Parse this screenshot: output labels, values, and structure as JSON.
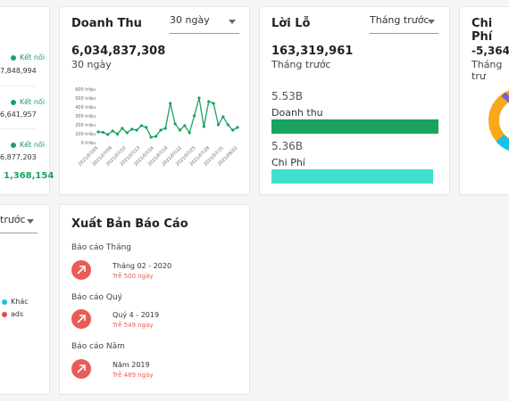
{
  "partner_card": {
    "status_label": "Kết nối",
    "items": [
      {
        "status": "Kết nối",
        "value": "7,848,994"
      },
      {
        "status": "Kết nối",
        "value": "6,641,957"
      },
      {
        "status": "Kết nối",
        "value": "6,877,203"
      }
    ],
    "total": "1,368,154"
  },
  "revenue_card": {
    "title": "Doanh Thu",
    "period_select": "30 ngày",
    "total": "6,034,837,308",
    "subtitle": "30 ngày"
  },
  "profit_card": {
    "title": "Lời Lỗ",
    "period_select": "Tháng trước",
    "total": "163,319,961",
    "subtitle": "Tháng trước",
    "revenue_value": "5.53B",
    "revenue_label": "Doanh thu",
    "revenue_fraction": 1.0,
    "expense_value": "5.36B",
    "expense_label": "Chi Phí",
    "expense_fraction": 0.97,
    "revenue_color": "#1aa260",
    "expense_color": "#40e0d0"
  },
  "expense_card": {
    "title": "Chi Phí",
    "total": "-5,364,",
    "subtitle": "Tháng trư"
  },
  "source_card": {
    "period_select": "trước",
    "legend": [
      {
        "label": "Khác",
        "color": "#17c1e8"
      },
      {
        "label": "ads",
        "color": "#e8493f"
      }
    ]
  },
  "report_card": {
    "title": "Xuất Bản Báo Cáo",
    "reports": [
      {
        "label": "Báo cáo Tháng",
        "period": "Tháng 02 - 2020",
        "late": "Trễ 500 ngày"
      },
      {
        "label": "Báo cáo Quý",
        "period": "Quý 4 - 2019",
        "late": "Trễ 549 ngày"
      },
      {
        "label": "Báo cáo Năm",
        "period": "Năm 2019",
        "late": "Trễ 489 ngày"
      }
    ]
  },
  "chart_data": {
    "type": "line",
    "title": "",
    "xlabel": "",
    "ylabel": "",
    "y_tick_labels": [
      "0 triệu",
      "100 triệu",
      "200 triệu",
      "300 triệu",
      "400 triệu",
      "500 triệu",
      "600 triệu"
    ],
    "ylim": [
      0,
      600
    ],
    "x_tick_labels": [
      "2021/07/05",
      "2021/07/08",
      "2021/07/10",
      "2021/07/13",
      "2021/07/16",
      "2021/07/19",
      "2021/07/22",
      "2021/07/25",
      "2021/07/28",
      "2021/07/31",
      "2021/08/02"
    ],
    "x": [
      "07/05",
      "07/06",
      "07/07",
      "07/08",
      "07/09",
      "07/10",
      "07/11",
      "07/12",
      "07/13",
      "07/14",
      "07/15",
      "07/16",
      "07/17",
      "07/18",
      "07/19",
      "07/20",
      "07/21",
      "07/22",
      "07/23",
      "07/24",
      "07/25",
      "07/26",
      "07/27",
      "07/28",
      "07/29",
      "07/30",
      "07/31",
      "08/01",
      "08/02",
      "08/03"
    ],
    "series": [
      {
        "values": [
          120,
          115,
          90,
          130,
          95,
          160,
          110,
          150,
          140,
          190,
          170,
          60,
          70,
          140,
          160,
          440,
          210,
          140,
          190,
          110,
          300,
          500,
          180,
          460,
          440,
          200,
          290,
          200,
          140,
          170
        ],
        "color": "#1aa260"
      }
    ],
    "grid": false
  }
}
